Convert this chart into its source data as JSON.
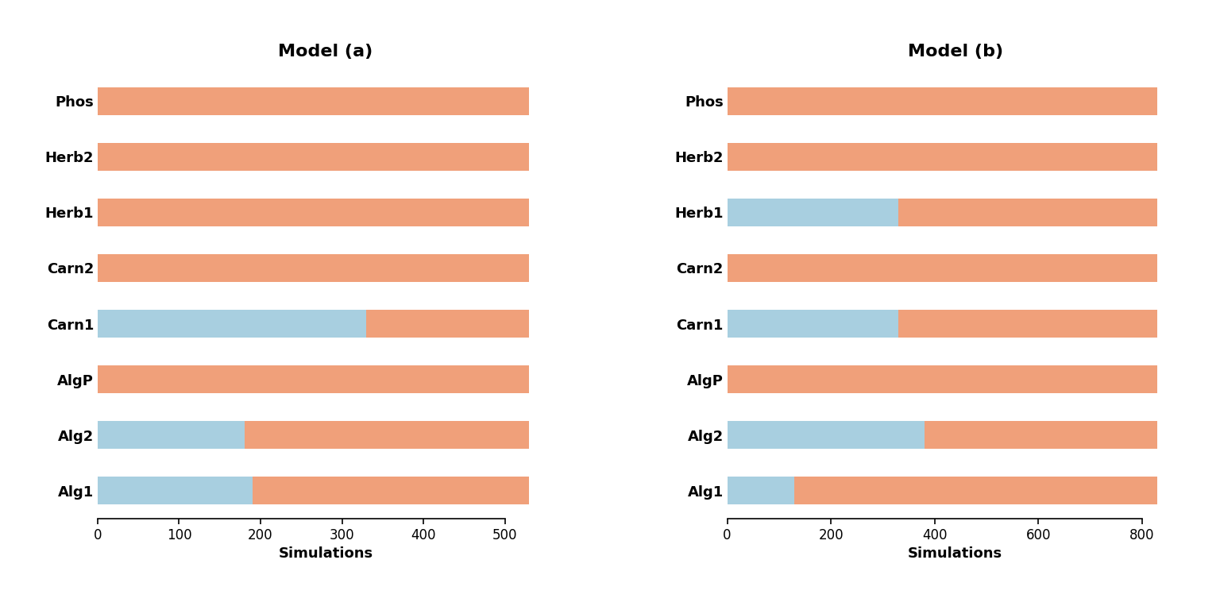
{
  "model_a": {
    "title": "Model (a)",
    "nodes": [
      "Phos",
      "Herb2",
      "Herb1",
      "Carn2",
      "Carn1",
      "AlgP",
      "Alg2",
      "Alg1"
    ],
    "negative": [
      0,
      0,
      0,
      0,
      330,
      0,
      180,
      190
    ],
    "positive": [
      530,
      530,
      530,
      530,
      200,
      530,
      350,
      340
    ],
    "xlim": [
      0,
      560
    ],
    "xticks": [
      0,
      100,
      200,
      300,
      400,
      500
    ]
  },
  "model_b": {
    "title": "Model (b)",
    "nodes": [
      "Phos",
      "Herb2",
      "Herb1",
      "Carn2",
      "Carn1",
      "AlgP",
      "Alg2",
      "Alg1"
    ],
    "negative": [
      0,
      0,
      330,
      0,
      330,
      0,
      380,
      130
    ],
    "positive": [
      830,
      830,
      500,
      830,
      500,
      830,
      450,
      700
    ],
    "xlim": [
      0,
      880
    ],
    "xticks": [
      0,
      200,
      400,
      600,
      800
    ]
  },
  "color_negative": "#a8cfe0",
  "color_positive": "#f0a07a",
  "bar_height": 0.5,
  "xlabel": "Simulations",
  "background_color": "#ffffff",
  "title_fontsize": 16,
  "label_fontsize": 13,
  "tick_fontsize": 12
}
